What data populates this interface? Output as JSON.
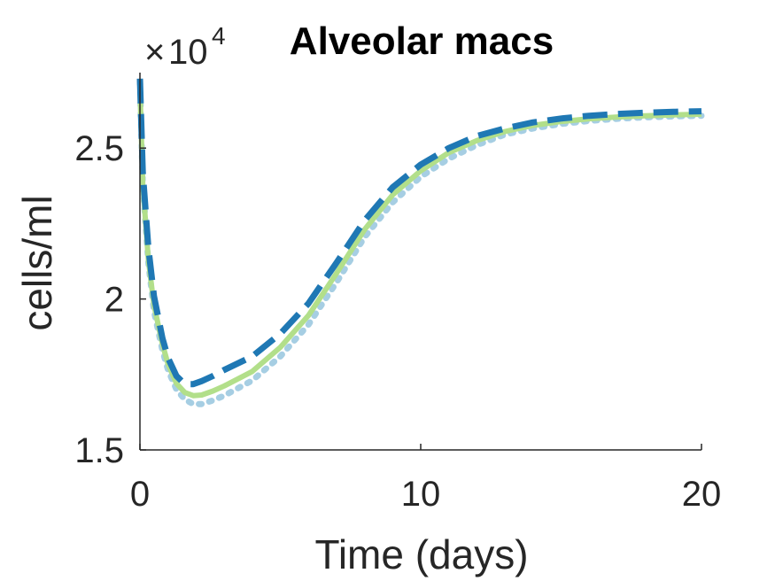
{
  "chart_data": {
    "type": "line",
    "title": "Alveolar macs",
    "xlabel": "Time (days)",
    "ylabel": "cells/ml",
    "y_multiplier_base": "10",
    "y_multiplier_exponent": "4",
    "xlim": [
      0,
      20
    ],
    "ylim": [
      1.5,
      2.75
    ],
    "xticks": [
      0,
      10,
      20
    ],
    "xtick_labels": [
      "0",
      "10",
      "20"
    ],
    "yticks": [
      1.5,
      2.0,
      2.5
    ],
    "ytick_labels": [
      "1.5",
      "2",
      "2.5"
    ],
    "grid": false,
    "series": [
      {
        "style": "dotted",
        "color": "#a6cee3",
        "x": [
          0,
          0.1,
          0.3,
          0.5,
          0.8,
          1.0,
          1.3,
          1.6,
          1.9,
          2.2,
          2.6,
          3.0,
          4.0,
          5.0,
          6.0,
          7.0,
          8.0,
          9.0,
          10.0,
          11.0,
          12.0,
          13.0,
          14.0,
          15.0,
          16.0,
          17.0,
          18.0,
          19.0,
          20.0
        ],
        "values": [
          2.72,
          2.38,
          2.12,
          1.96,
          1.83,
          1.765,
          1.7,
          1.667,
          1.652,
          1.652,
          1.664,
          1.68,
          1.73,
          1.81,
          1.915,
          2.055,
          2.205,
          2.32,
          2.405,
          2.465,
          2.51,
          2.545,
          2.565,
          2.58,
          2.59,
          2.597,
          2.602,
          2.605,
          2.607
        ]
      },
      {
        "style": "solid",
        "color": "#b2df8a",
        "x": [
          0,
          0.1,
          0.3,
          0.5,
          0.8,
          1.0,
          1.3,
          1.6,
          1.9,
          2.2,
          2.6,
          3.0,
          4.0,
          5.0,
          6.0,
          7.0,
          8.0,
          9.0,
          10.0,
          11.0,
          12.0,
          13.0,
          14.0,
          15.0,
          16.0,
          17.0,
          18.0,
          19.0,
          20.0
        ],
        "values": [
          2.7,
          2.38,
          2.13,
          1.98,
          1.85,
          1.785,
          1.72,
          1.69,
          1.68,
          1.682,
          1.695,
          1.712,
          1.76,
          1.84,
          1.945,
          2.085,
          2.23,
          2.345,
          2.425,
          2.485,
          2.525,
          2.555,
          2.575,
          2.588,
          2.597,
          2.603,
          2.607,
          2.61,
          2.612
        ]
      },
      {
        "style": "dashed",
        "color": "#1f78b4",
        "x": [
          0,
          0.1,
          0.3,
          0.5,
          0.8,
          1.0,
          1.3,
          1.6,
          1.9,
          2.2,
          2.6,
          3.0,
          4.0,
          5.0,
          6.0,
          7.0,
          8.0,
          9.0,
          10.0,
          11.0,
          12.0,
          13.0,
          14.0,
          15.0,
          16.0,
          17.0,
          18.0,
          19.0,
          20.0
        ],
        "values": [
          2.73,
          2.42,
          2.17,
          2.01,
          1.87,
          1.805,
          1.745,
          1.718,
          1.718,
          1.728,
          1.745,
          1.765,
          1.81,
          1.885,
          1.985,
          2.12,
          2.26,
          2.37,
          2.445,
          2.5,
          2.54,
          2.565,
          2.585,
          2.598,
          2.607,
          2.613,
          2.617,
          2.62,
          2.622
        ]
      }
    ]
  }
}
